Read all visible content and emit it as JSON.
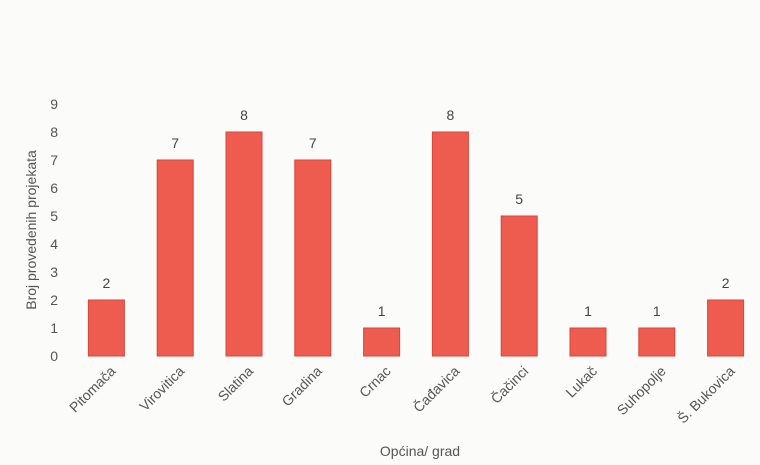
{
  "chart_data": {
    "type": "bar",
    "title": "",
    "xlabel": "Općina/ grad",
    "ylabel": "Broj provedenih projekata",
    "ylim": [
      0,
      9
    ],
    "yticks": [
      0,
      1,
      2,
      3,
      4,
      5,
      6,
      7,
      8,
      9
    ],
    "categories": [
      "Pitomača",
      "Virovitica",
      "Slatina",
      "Gradina",
      "Crnac",
      "Čađavica",
      "Čačinci",
      "Lukač",
      "Suhopolje",
      "Š. Bukovica"
    ],
    "values": [
      2,
      7,
      8,
      7,
      1,
      8,
      5,
      1,
      1,
      2
    ],
    "data_labels": [
      "2",
      "7",
      "8",
      "7",
      "1",
      "8",
      "5",
      "1",
      "1",
      "2"
    ],
    "grid": false,
    "legend": "none",
    "bar_color": "#ee5b4f",
    "bar_edge_color": "#d8463a"
  }
}
